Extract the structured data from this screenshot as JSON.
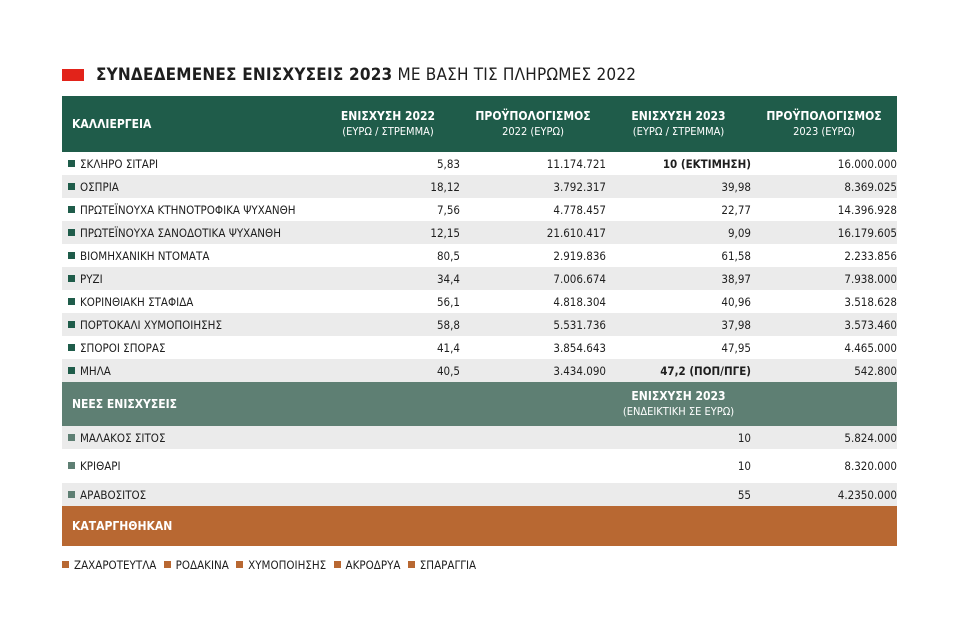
{
  "title": {
    "bold": "ΣΥΝΔΕΔΕΜΕΝΕΣ ΕΝΙΣΧΥΣΕΙΣ 2023",
    "rest": " ΜΕ ΒΑΣΗ ΤΙΣ ΠΛΗΡΩΜΕΣ 2022"
  },
  "colors": {
    "title_mark": "#e2231a",
    "header": "#1f5c4a",
    "subheader": "#5e7f73",
    "abolished": "#b86832"
  },
  "header": {
    "crop": "ΚΑΛΛΙΕΡΓΕΙΑ",
    "aid2022": "ΕΝΙΣΧΥΣΗ 2022",
    "aid2022_unit": "(ΕΥΡΩ / ΣΤΡΕΜΜΑ)",
    "budget2022": "ΠΡΟΫΠΟΛΟΓΙΣΜΟΣ",
    "budget2022_unit": "2022 (ΕΥΡΩ)",
    "aid2023": "ΕΝΙΣΧΥΣΗ 2023",
    "aid2023_unit": "(ΕΥΡΩ / ΣΤΡΕΜΜΑ)",
    "budget2023": "ΠΡΟΫΠΟΛΟΓΙΣΜΟΣ",
    "budget2023_unit": "2023 (ΕΥΡΩ)"
  },
  "rows": [
    {
      "crop": "ΣΚΛΗΡΟ ΣΙΤΑΡΙ",
      "aid2022": "5,83",
      "budget2022": "11.174.721",
      "aid2023": "10 (ΕΚΤΙΜΗΣΗ)",
      "budget2023": "16.000.000"
    },
    {
      "crop": "ΟΣΠΡΙΑ",
      "aid2022": "18,12",
      "budget2022": "3.792.317",
      "aid2023": "39,98",
      "budget2023": "8.369.025"
    },
    {
      "crop": "ΠΡΩΤΕΪΝΟΥΧΑ ΚΤΗΝΟΤΡΟΦΙΚΑ ΨΥΧΑΝΘΗ",
      "aid2022": "7,56",
      "budget2022": "4.778.457",
      "aid2023": "22,77",
      "budget2023": "14.396.928"
    },
    {
      "crop": "ΠΡΩΤΕΪΝΟΥΧΑ ΣΑΝΟΔΟΤΙΚΑ ΨΥΧΑΝΘΗ",
      "aid2022": "12,15",
      "budget2022": "21.610.417",
      "aid2023": "9,09",
      "budget2023": "16.179.605"
    },
    {
      "crop": "ΒΙΟΜΗΧΑΝΙΚΗ ΝΤΟΜΑΤΑ",
      "aid2022": "80,5",
      "budget2022": "2.919.836",
      "aid2023": "61,58",
      "budget2023": "2.233.856"
    },
    {
      "crop": "ΡΥΖΙ",
      "aid2022": "34,4",
      "budget2022": "7.006.674",
      "aid2023": "38,97",
      "budget2023": "7.938.000"
    },
    {
      "crop": "ΚΟΡΙΝΘΙΑΚΗ ΣΤΑΦΙΔΑ",
      "aid2022": "56,1",
      "budget2022": "4.818.304",
      "aid2023": "40,96",
      "budget2023": "3.518.628"
    },
    {
      "crop": "ΠΟΡΤΟΚΑΛΙ ΧΥΜΟΠΟΙΗΣΗΣ",
      "aid2022": "58,8",
      "budget2022": "5.531.736",
      "aid2023": "37,98",
      "budget2023": "3.573.460"
    },
    {
      "crop": "ΣΠΟΡΟΙ ΣΠΟΡΑΣ",
      "aid2022": "41,4",
      "budget2022": "3.854.643",
      "aid2023": "47,95",
      "budget2023": "4.465.000"
    },
    {
      "crop": "ΜΗΛΑ",
      "aid2022": "40,5",
      "budget2022": "3.434.090",
      "aid2023": "47,2 (ΠΟΠ/ΠΓΕ)",
      "budget2023": "542.800"
    }
  ],
  "new_section": {
    "label": "ΝΕΕΣ ΕΝΙΣΧΥΣΕΙΣ",
    "aid2023": "ΕΝΙΣΧΥΣΗ 2023",
    "aid2023_unit": "(ΕΝΔΕΙΚΤΙΚΗ ΣΕ ΕΥΡΩ)",
    "rows": [
      {
        "crop": "ΜΑΛΑΚΟΣ ΣΙΤΟΣ",
        "aid2023": "10",
        "budget2023": "5.824.000"
      },
      {
        "crop": "ΚΡΙΘΑΡΙ",
        "aid2023": "10",
        "budget2023": "8.320.000"
      },
      {
        "crop": "ΑΡΑΒΟΣΙΤΟΣ",
        "aid2023": "55",
        "budget2023": "4.2350.000"
      }
    ]
  },
  "abolished": {
    "label": "ΚΑΤΑΡΓΗΘΗΚΑΝ",
    "items": [
      "ΖΑΧΑΡΟΤΕΥΤΛΑ",
      "ΡΟΔΑΚΙΝΑ",
      "ΧΥΜΟΠΟΙΗΣΗΣ",
      "ΑΚΡΟΔΡΥΑ",
      "ΣΠΑΡΑΓΓΙΑ"
    ]
  }
}
